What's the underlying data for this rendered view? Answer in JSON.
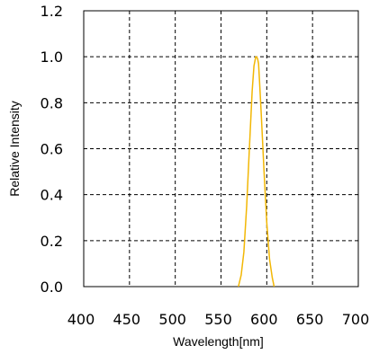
{
  "chart_data": {
    "type": "line",
    "xlabel": "Wavelength[nm]",
    "ylabel": "Relative Intensity",
    "xlim": [
      400,
      700
    ],
    "ylim": [
      0.0,
      1.2
    ],
    "x_ticks": [
      "400",
      "450",
      "500",
      "550",
      "600",
      "650",
      "700"
    ],
    "y_ticks": [
      "0.0",
      "0.2",
      "0.4",
      "0.6",
      "0.8",
      "1.0",
      "1.2"
    ],
    "grid": true,
    "grid_style": "dashed",
    "series": [
      {
        "color": "#F2B705",
        "x": [
          569,
          572,
          575,
          578,
          581,
          584,
          586,
          588,
          589,
          590,
          591,
          592,
          594,
          597,
          600,
          603,
          606,
          608
        ],
        "y": [
          0.0,
          0.05,
          0.15,
          0.35,
          0.6,
          0.85,
          0.96,
          1.0,
          1.0,
          0.99,
          0.97,
          0.9,
          0.75,
          0.5,
          0.28,
          0.12,
          0.04,
          0.0
        ]
      }
    ]
  }
}
